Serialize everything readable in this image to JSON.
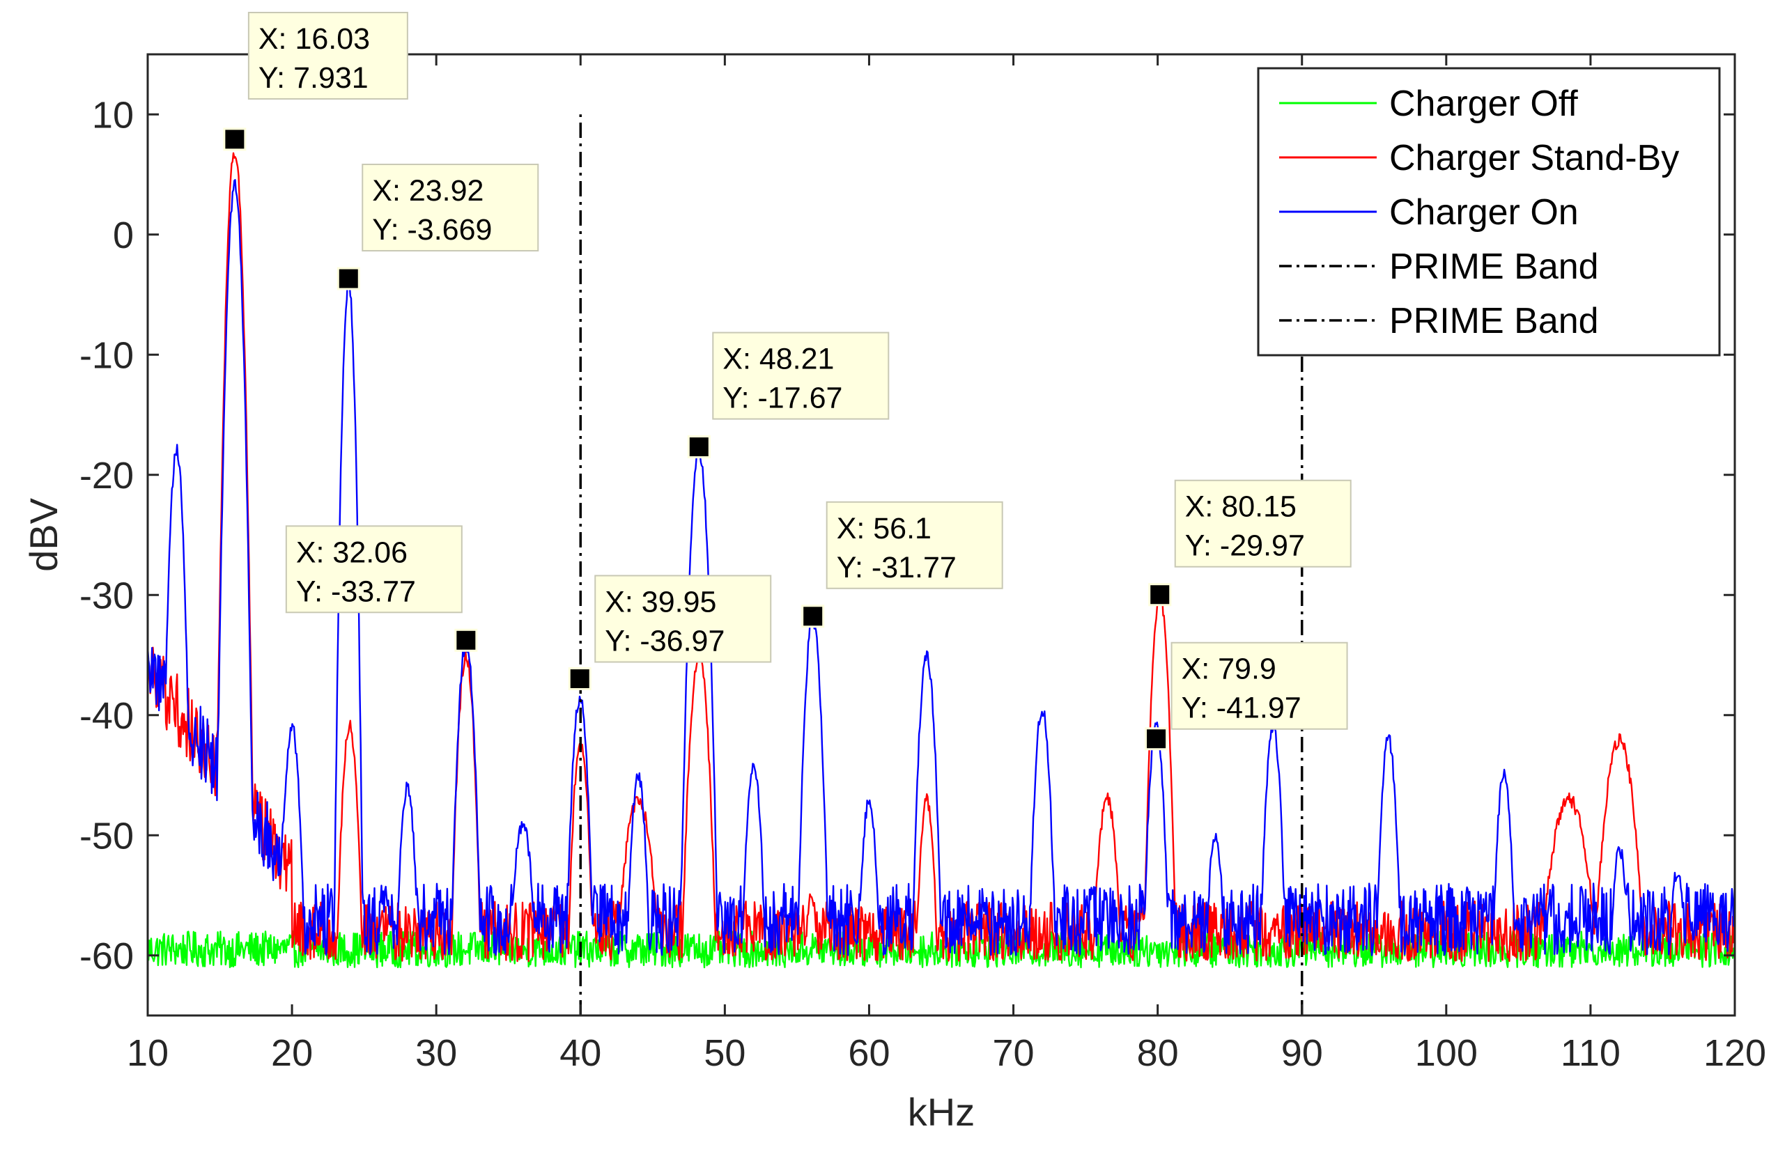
{
  "chart_data": {
    "type": "line",
    "title": "",
    "xlabel": "kHz",
    "ylabel": "dBV",
    "xlim": [
      10,
      120
    ],
    "ylim": [
      -65,
      15
    ],
    "xticks": [
      10,
      20,
      30,
      40,
      50,
      60,
      70,
      80,
      90,
      100,
      110,
      120
    ],
    "yticks": [
      10,
      0,
      -10,
      -20,
      -30,
      -40,
      -50,
      -60
    ],
    "legend_location": "top-right",
    "series": [
      {
        "name": "Charger Off",
        "color": "#00ff00",
        "style": "solid",
        "noise_floor": -59.5,
        "noise_amp": 1.5,
        "peaks": []
      },
      {
        "name": "Charger Stand-By",
        "color": "#ff0000",
        "style": "solid",
        "noise_floor": -58,
        "noise_amp": 2.5,
        "peaks": [
          [
            16.03,
            7,
            0.25
          ],
          [
            24,
            -41,
            0.3
          ],
          [
            32.06,
            -35,
            0.3
          ],
          [
            40,
            -42,
            0.3
          ],
          [
            44,
            -47,
            0.6
          ],
          [
            48.21,
            -35,
            0.35
          ],
          [
            56,
            -55,
            0.3
          ],
          [
            64,
            -47,
            0.3
          ],
          [
            76.5,
            -47,
            0.4
          ],
          [
            80.15,
            -29.97,
            0.3
          ],
          [
            108.5,
            -47,
            0.8
          ],
          [
            112,
            -42,
            0.6
          ]
        ]
      },
      {
        "name": "Charger On",
        "color": "#0000ff",
        "style": "solid",
        "noise_floor": -57,
        "noise_amp": 3,
        "peaks": [
          [
            12,
            -18,
            0.25
          ],
          [
            16.03,
            4,
            0.25
          ],
          [
            20,
            -41,
            0.3
          ],
          [
            23.92,
            -4,
            0.2
          ],
          [
            28,
            -46,
            0.3
          ],
          [
            32.06,
            -34,
            0.3
          ],
          [
            36,
            -49,
            0.4
          ],
          [
            39.95,
            -38.5,
            0.3
          ],
          [
            44,
            -45,
            0.3
          ],
          [
            48.21,
            -18,
            0.3
          ],
          [
            52,
            -44,
            0.3
          ],
          [
            56.1,
            -32,
            0.3
          ],
          [
            60,
            -47,
            0.3
          ],
          [
            64,
            -35,
            0.3
          ],
          [
            72,
            -39.5,
            0.3
          ],
          [
            79.9,
            -41,
            0.3
          ],
          [
            84,
            -50,
            0.3
          ],
          [
            88,
            -41,
            0.3
          ],
          [
            96,
            -42,
            0.3
          ],
          [
            104,
            -45,
            0.3
          ],
          [
            112,
            -51,
            0.3
          ],
          [
            116,
            -53,
            0.3
          ]
        ]
      },
      {
        "name": "PRIME Band",
        "color": "#000000",
        "style": "dashdot",
        "x": [
          40,
          40
        ],
        "y": [
          -65,
          10
        ]
      },
      {
        "name": "PRIME Band",
        "color": "#000000",
        "style": "dashdot",
        "x": [
          90,
          90
        ],
        "y": [
          -65,
          -10
        ]
      }
    ],
    "annotations": [
      {
        "x": 16.03,
        "y": 7.931,
        "label_x": "X: 16.03",
        "label_y": "Y: 7.931",
        "anchor": "above-right"
      },
      {
        "x": 23.92,
        "y": -3.669,
        "label_x": "X: 23.92",
        "label_y": "Y: -3.669",
        "anchor": "above-right"
      },
      {
        "x": 32.06,
        "y": -33.77,
        "label_x": "X: 32.06",
        "label_y": "Y: -33.77",
        "anchor": "above-left"
      },
      {
        "x": 39.95,
        "y": -36.97,
        "label_x": "X: 39.95",
        "label_y": "Y: -36.97",
        "anchor": "above-right"
      },
      {
        "x": 48.21,
        "y": -17.67,
        "label_x": "X: 48.21",
        "label_y": "Y: -17.67",
        "anchor": "above-right"
      },
      {
        "x": 56.1,
        "y": -31.77,
        "label_x": "X: 56.1",
        "label_y": "Y: -31.77",
        "anchor": "above-right"
      },
      {
        "x": 80.15,
        "y": -29.97,
        "label_x": "X: 80.15",
        "label_y": "Y: -29.97",
        "anchor": "above-right"
      },
      {
        "x": 79.9,
        "y": -41.97,
        "label_x": "X: 79.9",
        "label_y": "Y: -41.97",
        "anchor": "above-right"
      }
    ]
  }
}
